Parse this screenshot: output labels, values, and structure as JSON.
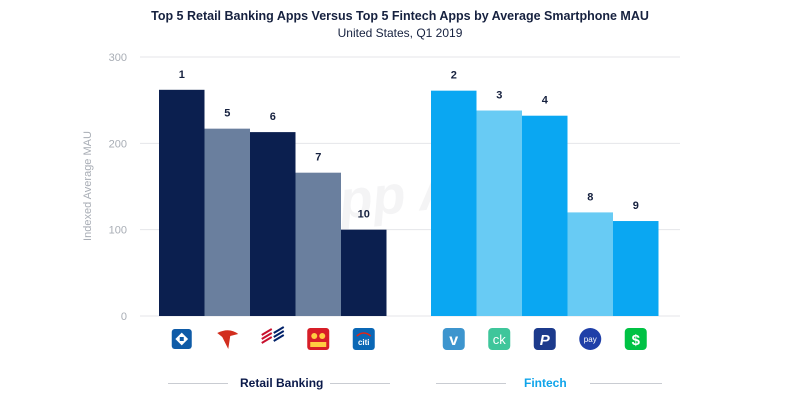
{
  "chart_data": {
    "type": "bar",
    "title": "Top 5 Retail Banking Apps Versus Top 5 Fintech Apps by Average Smartphone MAU",
    "subtitle": "United States, Q1 2019",
    "ylabel": "Indexed Average MAU",
    "ylim": [
      0,
      300
    ],
    "yticks": [
      "0",
      "100",
      "200",
      "300"
    ],
    "grid": true,
    "watermark": "App Annie",
    "groups": [
      {
        "name": "Retail Banking",
        "label_color": "#0b1a4a",
        "bars": [
          {
            "rank": "1",
            "value": 262,
            "color": "#0b1f4f",
            "icon": "chase-icon"
          },
          {
            "rank": "5",
            "value": 217,
            "color": "#6a7f9e",
            "icon": "capital-one-icon"
          },
          {
            "rank": "6",
            "value": 213,
            "color": "#0b1f4f",
            "icon": "bank-of-america-icon"
          },
          {
            "rank": "7",
            "value": 166,
            "color": "#6a7f9e",
            "icon": "wells-fargo-icon"
          },
          {
            "rank": "10",
            "value": 100,
            "color": "#0b1f4f",
            "icon": "citi-icon"
          }
        ]
      },
      {
        "name": "Fintech",
        "label_color": "#0fa4ea",
        "bars": [
          {
            "rank": "2",
            "value": 261,
            "color": "#0aa7f2",
            "icon": "venmo-icon"
          },
          {
            "rank": "3",
            "value": 238,
            "color": "#68cbf4",
            "icon": "credit-karma-icon"
          },
          {
            "rank": "4",
            "value": 232,
            "color": "#0aa7f2",
            "icon": "paypal-icon"
          },
          {
            "rank": "8",
            "value": 120,
            "color": "#68cbf4",
            "icon": "samsung-pay-icon"
          },
          {
            "rank": "9",
            "value": 110,
            "color": "#0aa7f2",
            "icon": "cash-app-icon"
          }
        ]
      }
    ],
    "icon_labels": {
      "citi": "citi",
      "credit_karma": "ck",
      "samsung_pay": "pay",
      "venmo": "v",
      "paypal": "P",
      "cash_app": "$"
    }
  }
}
